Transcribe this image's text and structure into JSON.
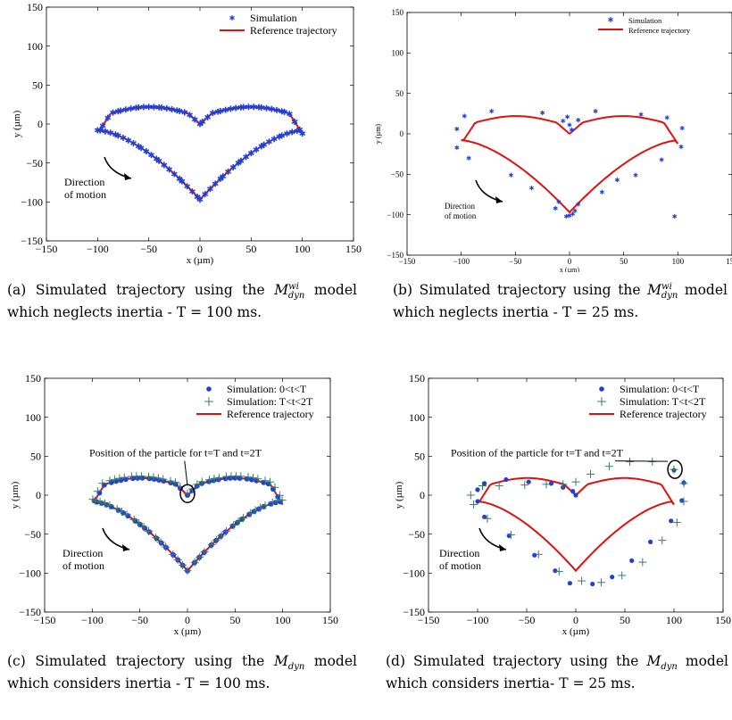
{
  "figure": {
    "captions": [
      {
        "prefix": "(a) Simulated trajectory using the",
        "math": "M",
        "sup": "wi",
        "sub": "dyn",
        "rest": "model which neglects inertia - T = 100 ms."
      },
      {
        "prefix": "(b) Simulated trajectory using the",
        "math": "M",
        "sup": "wi",
        "sub": "dyn",
        "rest": "model which neglects inertia - T = 25 ms."
      },
      {
        "prefix": "(c) Simulated trajectory using the",
        "math": "M",
        "sup": "",
        "sub": "dyn",
        "rest": "model which considers inertia - T = 100 ms."
      },
      {
        "prefix": "(d) Simulated trajectory using the",
        "math": "M",
        "sup": "",
        "sub": "dyn",
        "rest": "model which considers inertia- T = 25 ms."
      }
    ]
  },
  "chart_data": [
    {
      "type": "scatter",
      "xlabel": "x (µm)",
      "ylabel": "y (µm)",
      "xlim": [
        -150,
        150
      ],
      "ylim": [
        -150,
        150
      ],
      "xticks": [
        "−150",
        "−100",
        "−50",
        "0",
        "50",
        "100",
        "150"
      ],
      "yticks": [
        "−150",
        "−100",
        "−50",
        "0",
        "50",
        "100",
        "150"
      ],
      "legend": [
        "Simulation",
        "Reference trajectory"
      ],
      "legend_position": "top-right",
      "annotation": "Direction\nof motion",
      "series": [
        {
          "name": "Simulation",
          "marker": "asterisk",
          "color": "#1f3fd6",
          "sample_count": 90
        },
        {
          "name": "Reference trajectory",
          "marker": "line",
          "color": "#e01010"
        }
      ]
    },
    {
      "type": "scatter",
      "xlabel": "x (µm)",
      "ylabel": "y (µm)",
      "xlim": [
        -150,
        150
      ],
      "ylim": [
        -150,
        150
      ],
      "xticks": [
        "−150",
        "−100",
        "−50",
        "0",
        "50",
        "100",
        "150"
      ],
      "yticks": [
        "−150",
        "−100",
        "−50",
        "0",
        "50",
        "100",
        "150"
      ],
      "legend": [
        "Simulation",
        "Reference trajectory"
      ],
      "legend_position": "top-right",
      "annotation": "Direction\nof motion",
      "series": [
        {
          "name": "Simulation",
          "marker": "asterisk",
          "color": "#1f3fd6",
          "points": [
            [
              -104,
              6
            ],
            [
              -97,
              22
            ],
            [
              -104,
              -17
            ],
            [
              -93,
              -30
            ],
            [
              -72,
              28
            ],
            [
              -54,
              -51
            ],
            [
              -35,
              -67
            ],
            [
              -25,
              26
            ],
            [
              -13,
              -92
            ],
            [
              -10,
              -84
            ],
            [
              -3,
              -102
            ],
            [
              0,
              -101
            ],
            [
              3,
              -99
            ],
            [
              5,
              -95
            ],
            [
              8,
              -87
            ],
            [
              -6,
              16
            ],
            [
              -2,
              21
            ],
            [
              0,
              11
            ],
            [
              2,
              5
            ],
            [
              8,
              17
            ],
            [
              24,
              28
            ],
            [
              30,
              -72
            ],
            [
              44,
              -57
            ],
            [
              61,
              -51
            ],
            [
              66,
              24
            ],
            [
              85,
              -32
            ],
            [
              90,
              20
            ],
            [
              104,
              7
            ],
            [
              103,
              -16
            ],
            [
              97,
              -102
            ]
          ]
        },
        {
          "name": "Reference trajectory",
          "marker": "line",
          "color": "#e01010"
        }
      ]
    },
    {
      "type": "scatter",
      "xlabel": "x (µm)",
      "ylabel": "y (µm)",
      "xlim": [
        -150,
        150
      ],
      "ylim": [
        -150,
        150
      ],
      "xticks": [
        "−150",
        "−100",
        "−50",
        "0",
        "50",
        "100",
        "150"
      ],
      "yticks": [
        "−150",
        "−100",
        "−50",
        "0",
        "50",
        "100",
        "150"
      ],
      "legend": [
        "Simulation: 0<t<T",
        "Simulation: T<t<2T",
        "Reference trajectory"
      ],
      "legend_position": "top-right",
      "annotation": "Direction\nof motion",
      "callout": "Position of the particle for t=T and t=2T",
      "series": [
        {
          "name": "Simulation: 0<t<T",
          "marker": "dot",
          "color": "#1f3fd6",
          "sample_count": 70
        },
        {
          "name": "Simulation: T<t<2T",
          "marker": "plus",
          "color": "#3a7a6a",
          "sample_count": 70
        },
        {
          "name": "Reference trajectory",
          "marker": "line",
          "color": "#e01010"
        }
      ]
    },
    {
      "type": "scatter",
      "xlabel": "x (µm)",
      "ylabel": "y (µm)",
      "xlim": [
        -150,
        150
      ],
      "ylim": [
        -150,
        150
      ],
      "xticks": [
        "−150",
        "−100",
        "−50",
        "0",
        "50",
        "100",
        "150"
      ],
      "yticks": [
        "−150",
        "−100",
        "−50",
        "0",
        "50",
        "100",
        "150"
      ],
      "legend": [
        "Simulation: 0<t<T",
        "Simulation: T<t<2T",
        "Reference trajectory"
      ],
      "legend_position": "top-right",
      "annotation": "Direction\nof motion",
      "callout": "Position of the particle for t=T and t=2T",
      "series": [
        {
          "name": "Simulation: 0<t<T",
          "marker": "dot",
          "color": "#1f3fd6",
          "points": [
            [
              -100,
              7
            ],
            [
              -93,
              15
            ],
            [
              -71,
              20
            ],
            [
              -48,
              17
            ],
            [
              -25,
              15
            ],
            [
              -13,
              10
            ],
            [
              -3,
              5
            ],
            [
              0,
              0
            ],
            [
              -100,
              -8
            ],
            [
              -93,
              -28
            ],
            [
              -68,
              -52
            ],
            [
              -42,
              -77
            ],
            [
              -21,
              -97
            ],
            [
              -6,
              -113
            ],
            [
              17,
              -114
            ],
            [
              37,
              -105
            ],
            [
              57,
              -84
            ],
            [
              76,
              -60
            ],
            [
              97,
              -33
            ],
            [
              108,
              -7
            ],
            [
              110,
              16
            ],
            [
              100,
              32
            ]
          ]
        },
        {
          "name": "Simulation: T<t<2T",
          "marker": "plus",
          "color": "#3a7a6a",
          "points": [
            [
              -107,
              0
            ],
            [
              -104,
              -12
            ],
            [
              -90,
              -30
            ],
            [
              -66,
              -51
            ],
            [
              -38,
              -76
            ],
            [
              -17,
              -98
            ],
            [
              6,
              -110
            ],
            [
              26,
              -112
            ],
            [
              47,
              -103
            ],
            [
              68,
              -86
            ],
            [
              88,
              -58
            ],
            [
              103,
              -35
            ],
            [
              110,
              -8
            ],
            [
              110,
              15
            ],
            [
              100,
              33
            ],
            [
              78,
              43
            ],
            [
              55,
              43
            ],
            [
              34,
              37
            ],
            [
              15,
              27
            ],
            [
              0,
              17
            ],
            [
              -13,
              14
            ],
            [
              -30,
              14
            ],
            [
              -52,
              13
            ],
            [
              -78,
              12
            ],
            [
              -95,
              12
            ]
          ]
        },
        {
          "name": "Reference trajectory",
          "marker": "line",
          "color": "#e01010"
        }
      ]
    }
  ]
}
